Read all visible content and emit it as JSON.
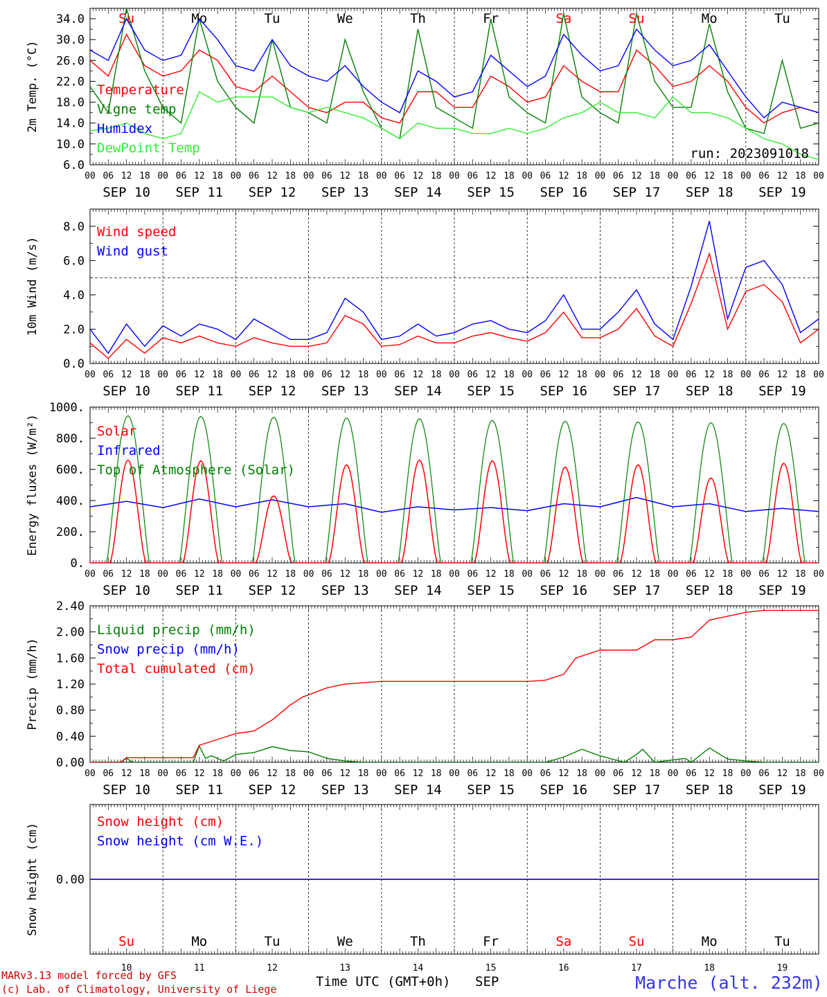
{
  "days": [
    {
      "abbr": "Su",
      "num": "10",
      "date_label": "SEP 10",
      "weekend": true
    },
    {
      "abbr": "Mo",
      "num": "11",
      "date_label": "SEP 11",
      "weekend": false
    },
    {
      "abbr": "Tu",
      "num": "12",
      "date_label": "SEP 12",
      "weekend": false
    },
    {
      "abbr": "We",
      "num": "13",
      "date_label": "SEP 13",
      "weekend": false
    },
    {
      "abbr": "Th",
      "num": "14",
      "date_label": "SEP 14",
      "weekend": false
    },
    {
      "abbr": "Fr",
      "num": "15",
      "date_label": "SEP 15",
      "weekend": false
    },
    {
      "abbr": "Sa",
      "num": "16",
      "date_label": "SEP 16",
      "weekend": true
    },
    {
      "abbr": "Su",
      "num": "17",
      "date_label": "SEP 17",
      "weekend": true
    },
    {
      "abbr": "Mo",
      "num": "18",
      "date_label": "SEP 18",
      "weekend": false
    },
    {
      "abbr": "Tu",
      "num": "19",
      "date_label": "SEP 19",
      "weekend": false
    }
  ],
  "hour_labels": [
    "00",
    "06",
    "12",
    "18"
  ],
  "final_hour_label": "00",
  "colors": {
    "weekend": "#ff0000",
    "weekday": "#000000"
  },
  "footer": {
    "model": "MARv3.13 model forced by GFS",
    "copyright": "(c) Lab. of Climatology, University of Liege",
    "xlabel": "Time UTC (GMT+0h)",
    "month": "SEP",
    "location": "Marche (alt. 232m)"
  },
  "chart_data": [
    {
      "id": "temp",
      "type": "line",
      "ylabel": "2m Temp. (°C)",
      "ylim": [
        6,
        36
      ],
      "ytick_labels": [
        "6.0",
        "10.0",
        "14.0",
        "18.0",
        "22.0",
        "26.0",
        "30.0",
        "34.0"
      ],
      "ytick_values": [
        6,
        10,
        14,
        18,
        22,
        26,
        30,
        34
      ],
      "annotation": "run: 2023091018",
      "x_unit": "hours since SEP 10 00 UTC",
      "series": [
        {
          "name": "Temperature",
          "color": "#ff0000",
          "x": [
            0,
            6,
            12,
            18,
            24,
            30,
            36,
            42,
            48,
            54,
            60,
            66,
            72,
            78,
            84,
            90,
            96,
            102,
            108,
            114,
            120,
            126,
            132,
            138,
            144,
            150,
            156,
            162,
            168,
            174,
            180,
            186,
            192,
            198,
            204,
            210,
            216,
            222,
            228,
            234,
            240
          ],
          "y": [
            26,
            23,
            31,
            25,
            23,
            24,
            28,
            26,
            21,
            20,
            23,
            20,
            17,
            16,
            18,
            18,
            15,
            14,
            20,
            20,
            17,
            17,
            23,
            21,
            18,
            19,
            25,
            22,
            20,
            20,
            28,
            25,
            21,
            22,
            25,
            22,
            17,
            14,
            16,
            17,
            16
          ]
        },
        {
          "name": "Vigne temp",
          "color": "#008000",
          "x": [
            0,
            6,
            12,
            18,
            24,
            30,
            36,
            42,
            48,
            54,
            60,
            66,
            72,
            78,
            84,
            90,
            96,
            102,
            108,
            114,
            120,
            126,
            132,
            138,
            144,
            150,
            156,
            162,
            168,
            174,
            180,
            186,
            192,
            198,
            204,
            210,
            216,
            222,
            228,
            234,
            240
          ],
          "y": [
            21,
            16,
            36,
            24,
            17,
            14,
            34,
            22,
            17,
            14,
            30,
            17,
            16,
            14,
            30,
            20,
            13,
            11,
            32,
            17,
            15,
            13,
            34,
            19,
            16,
            14,
            35,
            19,
            16,
            14,
            35,
            22,
            17,
            17,
            33,
            20,
            13,
            12,
            26,
            13,
            14
          ]
        },
        {
          "name": "Humidex",
          "color": "#0000ff",
          "x": [
            0,
            6,
            12,
            18,
            24,
            30,
            36,
            42,
            48,
            54,
            60,
            66,
            72,
            78,
            84,
            90,
            96,
            102,
            108,
            114,
            120,
            126,
            132,
            138,
            144,
            150,
            156,
            162,
            168,
            174,
            180,
            186,
            192,
            198,
            204,
            210,
            216,
            222,
            228,
            234,
            240
          ],
          "y": [
            28,
            26,
            34,
            28,
            26,
            27,
            34,
            30,
            25,
            24,
            30,
            25,
            23,
            22,
            25,
            21,
            18,
            16,
            24,
            22,
            19,
            20,
            27,
            24,
            21,
            23,
            31,
            27,
            24,
            25,
            32,
            28,
            25,
            26,
            29,
            24,
            19,
            15,
            18,
            17,
            16
          ]
        },
        {
          "name": "DewPoint Temp",
          "color": "#33ee33",
          "x": [
            0,
            6,
            12,
            18,
            24,
            30,
            36,
            42,
            48,
            54,
            60,
            66,
            72,
            78,
            84,
            90,
            96,
            102,
            108,
            114,
            120,
            126,
            132,
            138,
            144,
            150,
            156,
            162,
            168,
            174,
            180,
            186,
            192,
            198,
            204,
            210,
            216,
            222,
            228,
            234,
            240
          ],
          "y": [
            12.5,
            13,
            14,
            12,
            11,
            12,
            20,
            18,
            19,
            19,
            19,
            17,
            16,
            17,
            16,
            15,
            13,
            11,
            14,
            13,
            13,
            12,
            12,
            13,
            12,
            13,
            15,
            16,
            18,
            16,
            16,
            15,
            19,
            16,
            16,
            15,
            13,
            11,
            10,
            8,
            7
          ]
        }
      ]
    },
    {
      "id": "wind",
      "type": "line",
      "ylabel": "10m Wind (m/s)",
      "ylim": [
        0,
        9
      ],
      "ytick_labels": [
        "0.0",
        "2.0",
        "4.0",
        "6.0",
        "8.0"
      ],
      "ytick_values": [
        0,
        2,
        4,
        6,
        8
      ],
      "reference_line": 5,
      "x_unit": "hours since SEP 10 00 UTC",
      "series": [
        {
          "name": "Wind speed",
          "color": "#ff0000",
          "x": [
            0,
            6,
            12,
            18,
            24,
            30,
            36,
            42,
            48,
            54,
            60,
            66,
            72,
            78,
            84,
            90,
            96,
            102,
            108,
            114,
            120,
            126,
            132,
            138,
            144,
            150,
            156,
            162,
            168,
            174,
            180,
            186,
            192,
            198,
            204,
            210,
            216,
            222,
            228,
            234,
            240
          ],
          "y": [
            1.2,
            0.3,
            1.4,
            0.6,
            1.5,
            1.2,
            1.6,
            1.2,
            1.0,
            1.5,
            1.2,
            1.0,
            1.0,
            1.2,
            2.8,
            2.3,
            1.0,
            1.1,
            1.6,
            1.2,
            1.2,
            1.6,
            1.8,
            1.5,
            1.3,
            1.8,
            3.0,
            1.5,
            1.5,
            2.0,
            3.2,
            1.6,
            1.0,
            3.5,
            6.4,
            2.0,
            4.2,
            4.6,
            3.6,
            1.2,
            2.0
          ]
        },
        {
          "name": "Wind gust",
          "color": "#0000ff",
          "x": [
            0,
            6,
            12,
            18,
            24,
            30,
            36,
            42,
            48,
            54,
            60,
            66,
            72,
            78,
            84,
            90,
            96,
            102,
            108,
            114,
            120,
            126,
            132,
            138,
            144,
            150,
            156,
            162,
            168,
            174,
            180,
            186,
            192,
            198,
            204,
            210,
            216,
            222,
            228,
            234,
            240
          ],
          "y": [
            2.0,
            0.6,
            2.3,
            1.0,
            2.2,
            1.6,
            2.3,
            2.0,
            1.4,
            2.6,
            2.0,
            1.4,
            1.4,
            1.8,
            3.8,
            3.0,
            1.4,
            1.6,
            2.3,
            1.6,
            1.8,
            2.3,
            2.5,
            2.0,
            1.8,
            2.5,
            4.0,
            2.0,
            2.0,
            3.0,
            4.3,
            2.3,
            1.4,
            4.5,
            8.3,
            2.6,
            5.6,
            6.0,
            4.6,
            1.8,
            2.6
          ]
        }
      ]
    },
    {
      "id": "energy",
      "type": "line",
      "ylabel": "Energy fluxes (W/m²)",
      "ylim": [
        0,
        1000
      ],
      "ytick_labels": [
        "0.",
        "200.",
        "400.",
        "600.",
        "800.",
        "1000."
      ],
      "ytick_values": [
        0,
        200,
        400,
        600,
        800,
        1000
      ],
      "x_unit": "hours since SEP 10 00 UTC",
      "solar_peaks": [
        660,
        655,
        430,
        630,
        660,
        655,
        615,
        630,
        545,
        640
      ],
      "toa_peaks": [
        945,
        940,
        935,
        930,
        925,
        915,
        910,
        905,
        900,
        895
      ],
      "series": [
        {
          "name": "Solar",
          "color": "#ff0000"
        },
        {
          "name": "Infrared",
          "color": "#0000ff",
          "x": [
            0,
            12,
            24,
            36,
            48,
            60,
            72,
            84,
            96,
            108,
            120,
            132,
            144,
            156,
            168,
            180,
            192,
            204,
            216,
            228,
            240
          ],
          "y": [
            360,
            395,
            355,
            410,
            360,
            405,
            360,
            380,
            325,
            360,
            340,
            355,
            335,
            380,
            360,
            420,
            360,
            380,
            330,
            350,
            330
          ]
        },
        {
          "name": "Top of Atmosphere (Solar)",
          "color": "#008000"
        }
      ]
    },
    {
      "id": "precip",
      "type": "line",
      "ylabel": "Precip (mm/h)",
      "ylim": [
        0,
        2.4
      ],
      "ytick_labels": [
        "0.00",
        "0.40",
        "0.80",
        "1.20",
        "1.60",
        "2.00",
        "2.40"
      ],
      "ytick_values": [
        0,
        0.4,
        0.8,
        1.2,
        1.6,
        2.0,
        2.4
      ],
      "x_unit": "hours since SEP 10 00 UTC",
      "series": [
        {
          "name": "Liquid precip (mm/h)",
          "color": "#008000",
          "x": [
            0,
            10,
            12,
            14,
            34,
            36,
            38,
            40,
            44,
            48,
            54,
            60,
            66,
            72,
            78,
            84,
            90,
            96,
            150,
            156,
            162,
            168,
            176,
            180,
            182,
            186,
            196,
            198,
            204,
            210,
            216,
            222,
            240
          ],
          "y": [
            0,
            0,
            0.06,
            0,
            0,
            0.25,
            0.06,
            0.1,
            0.02,
            0.12,
            0.15,
            0.24,
            0.18,
            0.16,
            0.06,
            0.02,
            0,
            0,
            0,
            0.08,
            0.2,
            0.1,
            0,
            0.12,
            0.2,
            0,
            0.06,
            0,
            0.22,
            0.05,
            0.02,
            0,
            0
          ]
        },
        {
          "name": "Snow precip (mm/h)",
          "color": "#0000ff"
        },
        {
          "name": "Total cumulated (cm)",
          "color": "#ff0000",
          "x": [
            0,
            10,
            12,
            34,
            36,
            42,
            48,
            54,
            60,
            66,
            70,
            78,
            84,
            96,
            120,
            144,
            150,
            156,
            160,
            168,
            180,
            186,
            192,
            198,
            204,
            210,
            216,
            222,
            228,
            240
          ],
          "y": [
            0,
            0,
            0.07,
            0.07,
            0.26,
            0.35,
            0.44,
            0.48,
            0.65,
            0.88,
            1.0,
            1.14,
            1.2,
            1.24,
            1.24,
            1.24,
            1.26,
            1.35,
            1.6,
            1.72,
            1.72,
            1.88,
            1.88,
            1.92,
            2.18,
            2.24,
            2.3,
            2.33,
            2.33,
            2.33
          ]
        }
      ]
    },
    {
      "id": "snow",
      "type": "line",
      "ylabel": "Snow height (cm)",
      "ylim": [
        -1,
        1
      ],
      "ytick_labels": [
        "0.00"
      ],
      "ytick_values": [
        0
      ],
      "x_unit": "hours since SEP 10 00 UTC",
      "series": [
        {
          "name": "Snow height (cm)",
          "color": "#ff0000",
          "x": [
            0,
            240
          ],
          "y": [
            0,
            0
          ]
        },
        {
          "name": "Snow height (cm W.E.)",
          "color": "#0000ff",
          "x": [
            0,
            240
          ],
          "y": [
            0,
            0
          ]
        }
      ]
    }
  ]
}
